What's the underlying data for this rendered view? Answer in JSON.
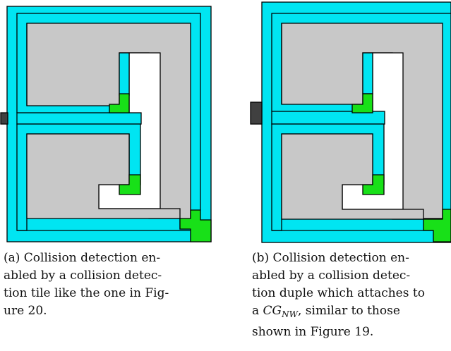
{
  "figure": {
    "colors": {
      "tile": "#00e5f2",
      "interior": "#c8c8c8",
      "green": "#18e018",
      "port": "#404040",
      "white": "#ffffff",
      "stroke": "#000000"
    },
    "caption_a": {
      "lines": [
        "(a) Collision detection en-",
        "abled by a collision detec-",
        "tion tile like the one in Fig-",
        "ure 20."
      ]
    },
    "caption_b": {
      "lines": [
        "(b) Collision detection en-",
        "abled by a collision detec-",
        "tion duple which attaches to"
      ],
      "line4_prefix": "a ",
      "math_main": "CG",
      "math_sub": "NW",
      "line4_suffix": ", similar to those",
      "line5": "shown in Figure 19."
    }
  }
}
